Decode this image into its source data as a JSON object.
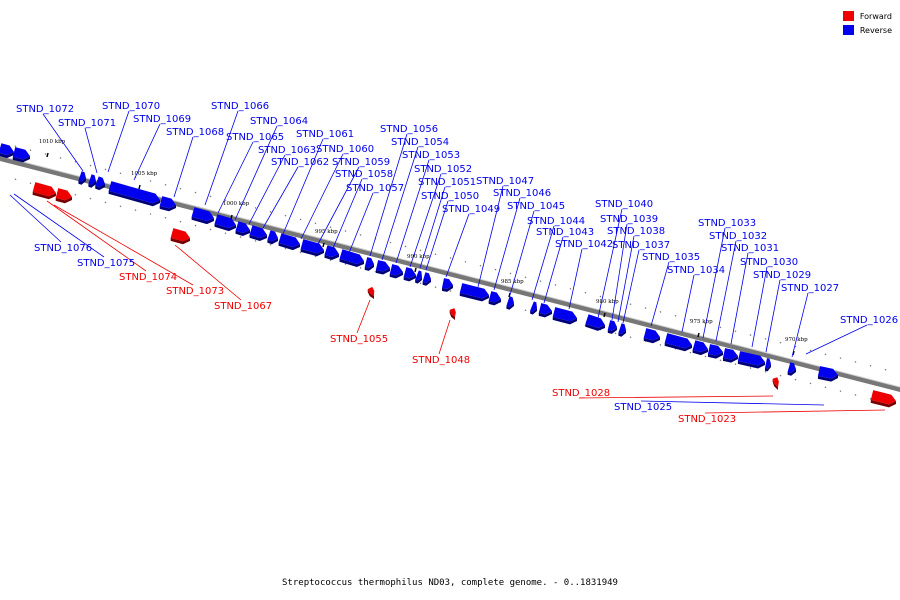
{
  "caption": "Streptococcus thermophilus ND03, complete genome. - 0..1831949",
  "legend": {
    "items": [
      {
        "label": "Forward",
        "color": "#ee0000"
      },
      {
        "label": "Reverse",
        "color": "#0000ee"
      }
    ]
  },
  "ticks": [
    "1010 kbp",
    "1005 kbp",
    "1000 kbp",
    "995 kbp",
    "990 kbp",
    "985 kbp",
    "980 kbp",
    "975 kbp",
    "970 kbp"
  ],
  "reverse_genes": [
    "STND_1072",
    "STND_1071",
    "STND_1070",
    "STND_1069",
    "STND_1068",
    "STND_1066",
    "STND_1065",
    "STND_1064",
    "STND_1063",
    "STND_1062",
    "STND_1061",
    "STND_1060",
    "STND_1059",
    "STND_1058",
    "STND_1057",
    "STND_1056",
    "STND_1054",
    "STND_1053",
    "STND_1052",
    "STND_1051",
    "STND_1050",
    "STND_1049",
    "STND_1047",
    "STND_1046",
    "STND_1045",
    "STND_1044",
    "STND_1043",
    "STND_1042",
    "STND_1040",
    "STND_1039",
    "STND_1038",
    "STND_1037",
    "STND_1035",
    "STND_1034",
    "STND_1033",
    "STND_1032",
    "STND_1031",
    "STND_1030",
    "STND_1029",
    "STND_1027",
    "STND_1026",
    "STND_1076",
    "STND_1075",
    "STND_1025"
  ],
  "forward_genes": [
    "STND_1074",
    "STND_1073",
    "STND_1067",
    "STND_1055",
    "STND_1048",
    "STND_1028",
    "STND_1023"
  ]
}
